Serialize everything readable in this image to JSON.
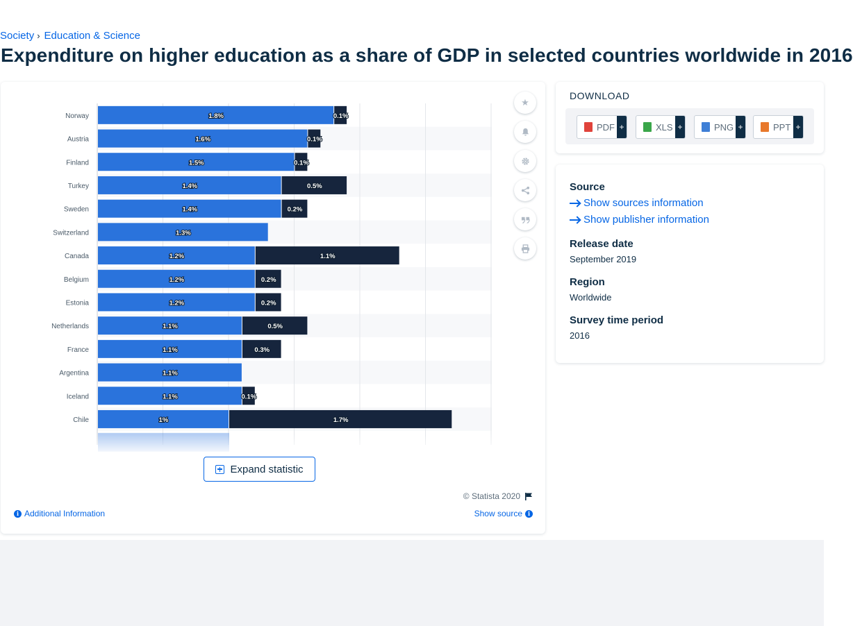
{
  "breadcrumb": {
    "item1": "Society",
    "separator": "›",
    "item2": "Education & Science"
  },
  "title": "Expenditure on higher education as a share of GDP in selected countries worldwide in 2016",
  "chart_data": {
    "type": "bar",
    "orientation": "horizontal-stacked",
    "categories": [
      "Norway",
      "Austria",
      "Finland",
      "Turkey",
      "Sweden",
      "Switzerland",
      "Canada",
      "Belgium",
      "Estonia",
      "Netherlands",
      "France",
      "Argentina",
      "Iceland",
      "Chile"
    ],
    "series": [
      {
        "values": [
          1.8,
          1.6,
          1.5,
          1.4,
          1.4,
          1.3,
          1.2,
          1.2,
          1.2,
          1.1,
          1.1,
          1.1,
          1.1,
          1.0
        ],
        "labels": [
          "1.8%",
          "1.6%",
          "1.5%",
          "1.4%",
          "1.4%",
          "1.3%",
          "1.2%",
          "1.2%",
          "1.2%",
          "1.1%",
          "1.1%",
          "1.1%",
          "1.1%",
          "1%"
        ],
        "color": "#2a73dc"
      },
      {
        "values": [
          0.1,
          0.1,
          0.1,
          0.5,
          0.2,
          0,
          1.1,
          0.2,
          0.2,
          0.5,
          0.3,
          0,
          0.1,
          1.7
        ],
        "labels": [
          "0.1%",
          "0.1%",
          "0.1%",
          "0.5%",
          "0.2%",
          "",
          "1.1%",
          "0.2%",
          "0.2%",
          "0.5%",
          "0.3%",
          "",
          "0.1%",
          "1.7%"
        ],
        "color": "#16253d"
      }
    ],
    "xlim": [
      0,
      3
    ],
    "grid": true,
    "legend": "none"
  },
  "tools": {
    "favorite": "star-icon",
    "notify": "bell-icon",
    "settings": "gear-icon",
    "share": "share-icon",
    "cite": "quote-icon",
    "print": "print-icon"
  },
  "expand_label": "Expand statistic",
  "copyright": "© Statista 2020",
  "additional_info": "Additional Information",
  "show_source": "Show source",
  "download": {
    "title": "DOWNLOAD",
    "buttons": [
      {
        "label": "PDF",
        "color": "#e0433b"
      },
      {
        "label": "XLS",
        "color": "#3aa64a"
      },
      {
        "label": "PNG",
        "color": "#3f7fd6"
      },
      {
        "label": "PPT",
        "color": "#e8792c"
      }
    ],
    "plus": "+"
  },
  "meta": {
    "source_label": "Source",
    "show_sources": "Show sources information",
    "show_publisher": "Show publisher information",
    "release_label": "Release date",
    "release_value": "September 2019",
    "region_label": "Region",
    "region_value": "Worldwide",
    "period_label": "Survey time period",
    "period_value": "2016"
  }
}
